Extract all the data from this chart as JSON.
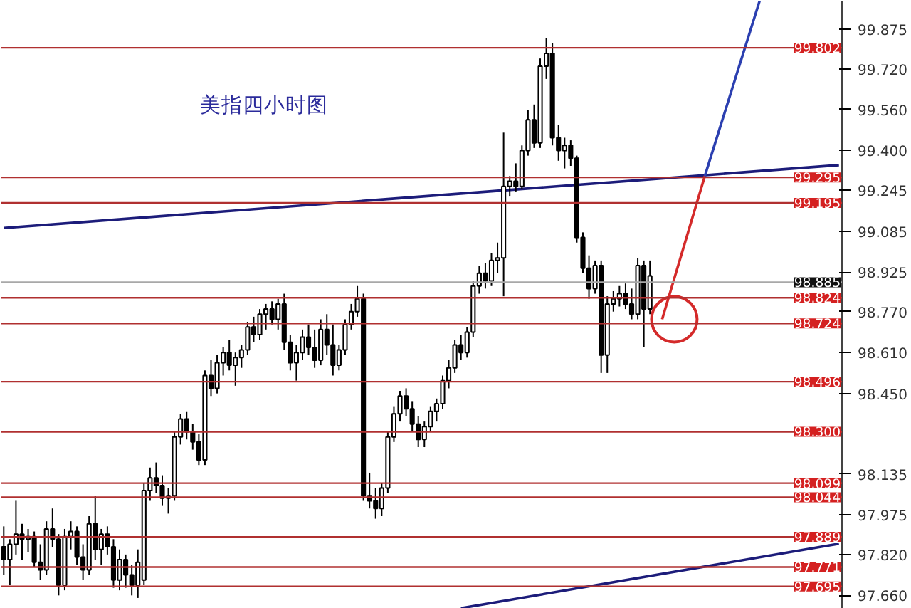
{
  "chart_data": {
    "type": "candlestick",
    "title": "美指四小时图",
    "categories": [
      null,
      null,
      null,
      null,
      null,
      null,
      null,
      null,
      null,
      null,
      null,
      null,
      null,
      null,
      null,
      null,
      null,
      null,
      null,
      null,
      null,
      null,
      null,
      null,
      null,
      null,
      null,
      null,
      null,
      null,
      null,
      null,
      null,
      null,
      null,
      null,
      null,
      null,
      null,
      null,
      null,
      null,
      null,
      null,
      null,
      null,
      null,
      null,
      null,
      null,
      null,
      null,
      null,
      null,
      null,
      null,
      null,
      null,
      null,
      null,
      null,
      null,
      null,
      null,
      null,
      null,
      null,
      null,
      null,
      null,
      null,
      null,
      null,
      null,
      null,
      null,
      null,
      null,
      null,
      null,
      null,
      null,
      null,
      null,
      null,
      null,
      null,
      null,
      null,
      null,
      null,
      null,
      null,
      null,
      null,
      null,
      null,
      null,
      null,
      null,
      null,
      null,
      null,
      null,
      null,
      null,
      null,
      null,
      null,
      null,
      null,
      null,
      null,
      null,
      null,
      null,
      null,
      null,
      null,
      null,
      null,
      null,
      null,
      null,
      null,
      null,
      null,
      null,
      null,
      null,
      null,
      null,
      null,
      null,
      null,
      null,
      null,
      null
    ],
    "ohlc": [
      [
        97.85,
        97.93,
        97.74,
        97.8
      ],
      [
        97.8,
        97.88,
        97.7,
        97.86
      ],
      [
        97.86,
        98.03,
        97.82,
        97.9
      ],
      [
        97.9,
        97.94,
        97.8,
        97.88
      ],
      [
        97.88,
        97.92,
        97.83,
        97.89
      ],
      [
        97.89,
        97.91,
        97.77,
        97.79
      ],
      [
        97.79,
        97.86,
        97.72,
        97.76
      ],
      [
        97.76,
        97.95,
        97.74,
        97.92
      ],
      [
        97.92,
        98.0,
        97.85,
        97.88
      ],
      [
        97.88,
        97.9,
        97.66,
        97.7
      ],
      [
        97.7,
        97.92,
        97.68,
        97.89
      ],
      [
        97.89,
        97.95,
        97.84,
        97.91
      ],
      [
        97.91,
        97.93,
        97.78,
        97.81
      ],
      [
        97.81,
        97.86,
        97.72,
        97.76
      ],
      [
        97.76,
        97.97,
        97.74,
        97.94
      ],
      [
        97.94,
        98.05,
        97.8,
        97.84
      ],
      [
        97.84,
        97.92,
        97.78,
        97.9
      ],
      [
        97.9,
        97.93,
        97.82,
        97.85
      ],
      [
        97.85,
        97.88,
        97.69,
        97.72
      ],
      [
        97.72,
        97.84,
        97.68,
        97.8
      ],
      [
        97.8,
        97.82,
        97.69,
        97.74
      ],
      [
        97.74,
        97.78,
        97.66,
        97.7
      ],
      [
        97.7,
        97.84,
        97.65,
        97.79
      ],
      [
        97.72,
        98.1,
        97.7,
        98.07
      ],
      [
        98.07,
        98.16,
        98.03,
        98.12
      ],
      [
        98.12,
        98.18,
        98.06,
        98.09
      ],
      [
        98.09,
        98.13,
        98.01,
        98.04
      ],
      [
        98.04,
        98.08,
        97.98,
        98.05
      ],
      [
        98.05,
        98.3,
        98.03,
        98.28
      ],
      [
        98.28,
        98.37,
        98.25,
        98.35
      ],
      [
        98.35,
        98.38,
        98.27,
        98.3
      ],
      [
        98.3,
        98.33,
        98.23,
        98.26
      ],
      [
        98.26,
        98.29,
        98.17,
        98.19
      ],
      [
        98.19,
        98.54,
        98.17,
        98.52
      ],
      [
        98.52,
        98.58,
        98.44,
        98.47
      ],
      [
        98.47,
        98.6,
        98.45,
        98.57
      ],
      [
        98.57,
        98.63,
        98.52,
        98.61
      ],
      [
        98.61,
        98.66,
        98.54,
        98.56
      ],
      [
        98.56,
        98.61,
        98.48,
        98.59
      ],
      [
        98.59,
        98.64,
        98.55,
        98.62
      ],
      [
        98.62,
        98.73,
        98.6,
        98.71
      ],
      [
        98.71,
        98.75,
        98.65,
        98.68
      ],
      [
        98.68,
        98.78,
        98.66,
        98.76
      ],
      [
        98.76,
        98.8,
        98.7,
        98.78
      ],
      [
        98.78,
        98.81,
        98.72,
        98.74
      ],
      [
        98.74,
        98.82,
        98.7,
        98.8
      ],
      [
        98.8,
        98.84,
        98.62,
        98.65
      ],
      [
        98.65,
        98.68,
        98.54,
        98.57
      ],
      [
        98.57,
        98.64,
        98.5,
        98.61
      ],
      [
        98.61,
        98.7,
        98.58,
        98.67
      ],
      [
        98.67,
        98.72,
        98.6,
        98.63
      ],
      [
        98.63,
        98.7,
        98.55,
        98.58
      ],
      [
        98.58,
        98.74,
        98.56,
        98.7
      ],
      [
        98.7,
        98.76,
        98.6,
        98.64
      ],
      [
        98.64,
        98.72,
        98.52,
        98.56
      ],
      [
        98.56,
        98.64,
        98.54,
        98.62
      ],
      [
        98.62,
        98.74,
        98.6,
        98.72
      ],
      [
        98.72,
        98.8,
        98.7,
        98.77
      ],
      [
        98.77,
        98.87,
        98.75,
        98.82
      ],
      [
        98.82,
        98.84,
        98.03,
        98.05
      ],
      [
        98.05,
        98.14,
        98.0,
        98.03
      ],
      [
        98.03,
        98.08,
        97.96,
        98.0
      ],
      [
        98.0,
        98.1,
        97.97,
        98.08
      ],
      [
        98.08,
        98.3,
        98.06,
        98.28
      ],
      [
        98.28,
        98.4,
        98.26,
        98.37
      ],
      [
        98.37,
        98.46,
        98.34,
        98.44
      ],
      [
        98.44,
        98.47,
        98.36,
        98.39
      ],
      [
        98.39,
        98.42,
        98.3,
        98.33
      ],
      [
        98.33,
        98.36,
        98.24,
        98.27
      ],
      [
        98.27,
        98.34,
        98.24,
        98.32
      ],
      [
        98.32,
        98.4,
        98.3,
        98.38
      ],
      [
        98.38,
        98.43,
        98.34,
        98.41
      ],
      [
        98.41,
        98.52,
        98.39,
        98.5
      ],
      [
        98.5,
        98.58,
        98.47,
        98.55
      ],
      [
        98.55,
        98.66,
        98.53,
        98.64
      ],
      [
        98.64,
        98.68,
        98.58,
        98.61
      ],
      [
        98.61,
        98.71,
        98.59,
        98.69
      ],
      [
        98.69,
        98.89,
        98.67,
        98.87
      ],
      [
        98.87,
        98.95,
        98.84,
        98.92
      ],
      [
        98.92,
        98.96,
        98.86,
        98.89
      ],
      [
        98.89,
        99.0,
        98.87,
        98.97
      ],
      [
        98.97,
        99.04,
        98.92,
        98.98
      ],
      [
        98.98,
        99.47,
        98.83,
        99.26
      ],
      [
        99.26,
        99.3,
        99.22,
        99.28
      ],
      [
        99.28,
        99.35,
        99.24,
        99.26
      ],
      [
        99.26,
        99.42,
        99.25,
        99.4
      ],
      [
        99.4,
        99.56,
        99.38,
        99.52
      ],
      [
        99.52,
        99.58,
        99.41,
        99.43
      ],
      [
        99.43,
        99.76,
        99.41,
        99.73
      ],
      [
        99.73,
        99.84,
        99.68,
        99.78
      ],
      [
        99.78,
        99.82,
        99.42,
        99.45
      ],
      [
        99.45,
        99.5,
        99.36,
        99.4
      ],
      [
        99.4,
        99.45,
        99.33,
        99.42
      ],
      [
        99.42,
        99.44,
        99.34,
        99.37
      ],
      [
        99.37,
        99.38,
        99.04,
        99.06
      ],
      [
        99.06,
        99.08,
        98.92,
        98.94
      ],
      [
        98.94,
        98.99,
        98.82,
        98.86
      ],
      [
        98.86,
        98.97,
        98.84,
        98.95
      ],
      [
        98.95,
        98.97,
        98.53,
        98.6
      ],
      [
        98.6,
        98.83,
        98.53,
        98.8
      ],
      [
        98.8,
        98.85,
        98.77,
        98.82
      ],
      [
        98.82,
        98.87,
        98.79,
        98.84
      ],
      [
        98.84,
        98.88,
        98.78,
        98.8
      ],
      [
        98.8,
        98.86,
        98.74,
        98.76
      ],
      [
        98.76,
        98.98,
        98.74,
        98.95
      ],
      [
        98.95,
        98.97,
        98.63,
        98.78
      ],
      [
        98.78,
        98.97,
        98.76,
        98.91
      ],
      null,
      null,
      null,
      null,
      null,
      null,
      null,
      null,
      null,
      null,
      null,
      null,
      null,
      null,
      null,
      null,
      null,
      null,
      null,
      null,
      null,
      null,
      null,
      null,
      null,
      null,
      null,
      null,
      null,
      null,
      null
    ],
    "series": [
      {
        "type": "line",
        "color": "#1c1c7a",
        "values": [
          99.097,
          null,
          null,
          null,
          null,
          null,
          null,
          null,
          null,
          null,
          null,
          null,
          null,
          null,
          null,
          null,
          null,
          null,
          null,
          null,
          null,
          null,
          null,
          null,
          null,
          null,
          null,
          null,
          null,
          null,
          null,
          null,
          null,
          null,
          null,
          null,
          null,
          null,
          null,
          null,
          null,
          null,
          null,
          null,
          null,
          null,
          null,
          null,
          null,
          null,
          null,
          null,
          null,
          null,
          null,
          null,
          null,
          null,
          null,
          null,
          null,
          null,
          null,
          null,
          null,
          null,
          null,
          null,
          null,
          null,
          null,
          null,
          null,
          null,
          null,
          null,
          null,
          null,
          null,
          null,
          null,
          null,
          null,
          null,
          null,
          null,
          null,
          null,
          null,
          null,
          null,
          null,
          null,
          null,
          null,
          null,
          null,
          null,
          null,
          null,
          null,
          null,
          null,
          null,
          null,
          null,
          null,
          null,
          null,
          null,
          null,
          null,
          null,
          null,
          null,
          null,
          null,
          null,
          null,
          null,
          null,
          null,
          null,
          null,
          null,
          null,
          null,
          null,
          null,
          null,
          null,
          null,
          null,
          null,
          null,
          null,
          null,
          99.343
        ]
      },
      {
        "type": "line",
        "color": "#1c1c7a",
        "values": [
          null,
          null,
          null,
          null,
          null,
          null,
          null,
          null,
          null,
          null,
          null,
          null,
          null,
          null,
          null,
          null,
          null,
          null,
          null,
          null,
          null,
          null,
          null,
          null,
          null,
          null,
          null,
          null,
          null,
          null,
          null,
          null,
          null,
          null,
          null,
          null,
          null,
          null,
          null,
          null,
          null,
          null,
          null,
          null,
          null,
          null,
          null,
          null,
          null,
          null,
          null,
          null,
          null,
          null,
          null,
          null,
          null,
          null,
          null,
          null,
          null,
          null,
          null,
          null,
          null,
          null,
          null,
          null,
          null,
          null,
          null,
          null,
          null,
          null,
          null,
          97.61,
          null,
          null,
          null,
          null,
          null,
          null,
          null,
          null,
          null,
          null,
          null,
          null,
          null,
          null,
          null,
          null,
          null,
          null,
          null,
          null,
          null,
          null,
          null,
          null,
          null,
          null,
          null,
          null,
          null,
          null,
          null,
          null,
          null,
          null,
          null,
          null,
          null,
          null,
          null,
          null,
          null,
          null,
          null,
          null,
          null,
          null,
          null,
          null,
          null,
          null,
          null,
          null,
          null,
          null,
          null,
          null,
          null,
          null,
          null,
          null,
          null,
          97.862
        ]
      },
      {
        "type": "line",
        "color": "#d42a2a",
        "values": [
          null,
          null,
          null,
          null,
          null,
          null,
          null,
          null,
          null,
          null,
          null,
          null,
          null,
          null,
          null,
          null,
          null,
          null,
          null,
          null,
          null,
          null,
          null,
          null,
          null,
          null,
          null,
          null,
          null,
          null,
          null,
          null,
          null,
          null,
          null,
          null,
          null,
          null,
          null,
          null,
          null,
          null,
          null,
          null,
          null,
          null,
          null,
          null,
          null,
          null,
          null,
          null,
          null,
          null,
          null,
          null,
          null,
          null,
          null,
          null,
          null,
          null,
          null,
          null,
          null,
          null,
          null,
          null,
          null,
          null,
          null,
          null,
          null,
          null,
          null,
          null,
          null,
          null,
          null,
          null,
          null,
          null,
          null,
          null,
          null,
          null,
          null,
          null,
          null,
          null,
          null,
          null,
          null,
          null,
          null,
          null,
          null,
          null,
          null,
          null,
          null,
          null,
          null,
          null,
          null,
          null,
          null,
          null,
          98.74,
          null,
          null,
          null,
          null,
          null,
          null,
          99.3,
          null,
          null,
          null,
          null,
          null,
          null,
          null,
          null,
          null,
          null,
          null,
          null,
          null,
          null,
          null,
          null,
          null,
          null,
          null,
          null,
          null,
          null
        ]
      },
      {
        "type": "line",
        "color": "#2b3fb0",
        "values": [
          null,
          null,
          null,
          null,
          null,
          null,
          null,
          null,
          null,
          null,
          null,
          null,
          null,
          null,
          null,
          null,
          null,
          null,
          null,
          null,
          null,
          null,
          null,
          null,
          null,
          null,
          null,
          null,
          null,
          null,
          null,
          null,
          null,
          null,
          null,
          null,
          null,
          null,
          null,
          null,
          null,
          null,
          null,
          null,
          null,
          null,
          null,
          null,
          null,
          null,
          null,
          null,
          null,
          null,
          null,
          null,
          null,
          null,
          null,
          null,
          null,
          null,
          null,
          null,
          null,
          null,
          null,
          null,
          null,
          null,
          null,
          null,
          null,
          null,
          null,
          null,
          null,
          null,
          null,
          null,
          null,
          null,
          null,
          null,
          null,
          null,
          null,
          null,
          null,
          null,
          null,
          null,
          null,
          null,
          null,
          null,
          null,
          null,
          null,
          null,
          null,
          null,
          null,
          null,
          null,
          null,
          null,
          null,
          null,
          null,
          null,
          null,
          null,
          null,
          null,
          99.3,
          null,
          null,
          null,
          null,
          null,
          null,
          null,
          null,
          99.986,
          null,
          null,
          null,
          null,
          null,
          null,
          null,
          null,
          null,
          null,
          null,
          null,
          null
        ]
      },
      {
        "type": "scatter",
        "marker": "circle",
        "color": "#d42a2a",
        "values": [
          null,
          null,
          null,
          null,
          null,
          null,
          null,
          null,
          null,
          null,
          null,
          null,
          null,
          null,
          null,
          null,
          null,
          null,
          null,
          null,
          null,
          null,
          null,
          null,
          null,
          null,
          null,
          null,
          null,
          null,
          null,
          null,
          null,
          null,
          null,
          null,
          null,
          null,
          null,
          null,
          null,
          null,
          null,
          null,
          null,
          null,
          null,
          null,
          null,
          null,
          null,
          null,
          null,
          null,
          null,
          null,
          null,
          null,
          null,
          null,
          null,
          null,
          null,
          null,
          null,
          null,
          null,
          null,
          null,
          null,
          null,
          null,
          null,
          null,
          null,
          null,
          null,
          null,
          null,
          null,
          null,
          null,
          null,
          null,
          null,
          null,
          null,
          null,
          null,
          null,
          null,
          null,
          null,
          null,
          null,
          null,
          null,
          null,
          null,
          null,
          null,
          null,
          null,
          null,
          null,
          null,
          null,
          null,
          null,
          null,
          98.74,
          null,
          null,
          null,
          null,
          null,
          null,
          null,
          null,
          null,
          null,
          null,
          null,
          null,
          null,
          null,
          null,
          null,
          null,
          null,
          null,
          null,
          null,
          null,
          null,
          null,
          null,
          null
        ]
      }
    ],
    "ylim": [
      97.608,
      99.986
    ],
    "yticks": [
      {
        "value": 99.875,
        "label": "99.875"
      },
      {
        "value": 99.72,
        "label": "99.720"
      },
      {
        "value": 99.56,
        "label": "99.560"
      },
      {
        "value": 99.4,
        "label": "99.400"
      },
      {
        "value": 99.245,
        "label": "99.245"
      },
      {
        "value": 99.085,
        "label": "99.085"
      },
      {
        "value": 98.925,
        "label": "98.925"
      },
      {
        "value": 98.77,
        "label": "98.770"
      },
      {
        "value": 98.61,
        "label": "98.610"
      },
      {
        "value": 98.45,
        "label": "98.450"
      },
      {
        "value": 98.135,
        "label": "98.135"
      },
      {
        "value": 97.975,
        "label": "97.975"
      },
      {
        "value": 97.82,
        "label": "97.820"
      },
      {
        "value": 97.66,
        "label": "97.660"
      }
    ],
    "tick_labels": "y",
    "ref_lines": [
      {
        "axis": "y",
        "value": 99.802,
        "label": "99.802",
        "color": "#b03030"
      },
      {
        "axis": "y",
        "value": 99.295,
        "label": "99.295",
        "color": "#b03030"
      },
      {
        "axis": "y",
        "value": 99.195,
        "label": "99.195",
        "color": "#b03030"
      },
      {
        "axis": "y",
        "value": 98.885,
        "label": "98.885",
        "color": "#a8a8a8"
      },
      {
        "axis": "y",
        "value": 98.824,
        "label": "98.824",
        "color": "#b03030"
      },
      {
        "axis": "y",
        "value": 98.724,
        "label": "98.724",
        "color": "#b03030"
      },
      {
        "axis": "y",
        "value": 98.496,
        "label": "98.496",
        "color": "#b03030"
      },
      {
        "axis": "y",
        "value": 98.3,
        "label": "98.300",
        "color": "#b03030"
      },
      {
        "axis": "y",
        "value": 98.099,
        "label": "98.099",
        "color": "#b03030"
      },
      {
        "axis": "y",
        "value": 98.044,
        "label": "98.044",
        "color": "#b03030"
      },
      {
        "axis": "y",
        "value": 97.889,
        "label": "97.889",
        "color": "#b03030"
      },
      {
        "axis": "y",
        "value": 97.771,
        "label": "97.771",
        "color": "#b03030"
      },
      {
        "axis": "y",
        "value": 97.695,
        "label": "97.695",
        "color": "#b03030"
      }
    ]
  }
}
